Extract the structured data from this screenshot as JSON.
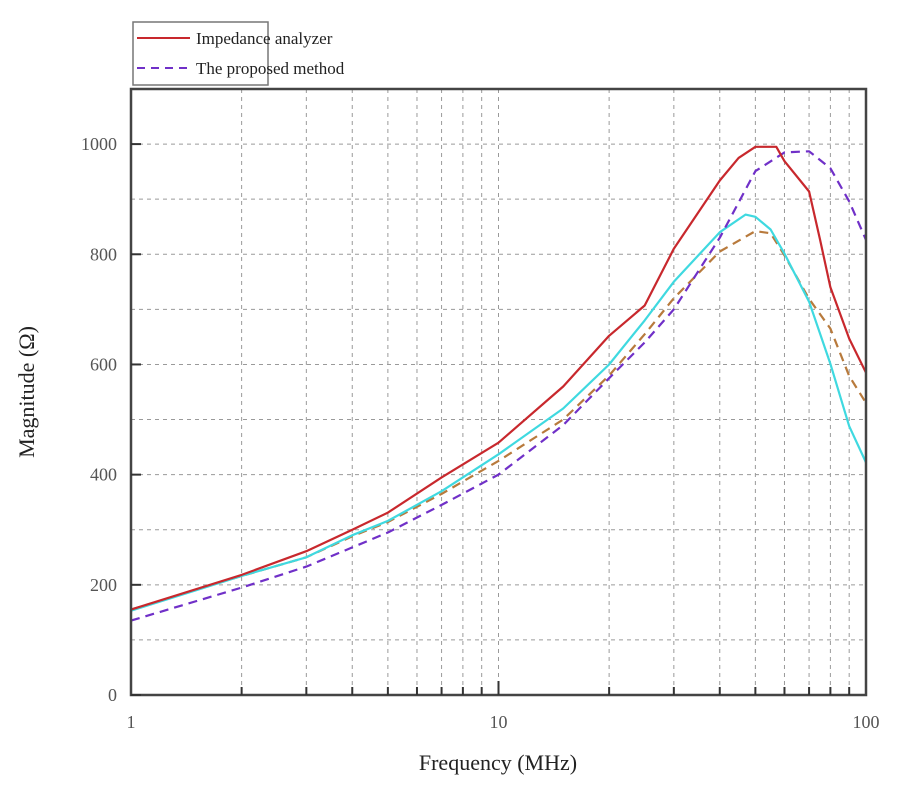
{
  "chart_data": {
    "type": "line",
    "title": "",
    "xlabel": "Frequency (MHz)",
    "ylabel": "Magnitude (Ω)",
    "xscale": "log",
    "xlim": [
      1,
      100
    ],
    "ylim": [
      0,
      1100
    ],
    "x_ticks": [
      1,
      10,
      100
    ],
    "x_tick_labels": [
      "1",
      "10",
      "100"
    ],
    "y_ticks": [
      0,
      200,
      400,
      600,
      800,
      1000
    ],
    "y_tick_labels": [
      "0",
      "200",
      "400",
      "600",
      "800",
      "1000"
    ],
    "y_minor_grid": [
      100,
      300,
      500,
      700,
      900
    ],
    "grid": true,
    "legend_position": "top-left, above plot",
    "series": [
      {
        "name": "Impedance analyzer",
        "in_legend": true,
        "color": "#c8282d",
        "style": "solid",
        "x": [
          1,
          2,
          3,
          4,
          5,
          7,
          10,
          15,
          20,
          25,
          30,
          40,
          45,
          50,
          57,
          60,
          70,
          75,
          80,
          90,
          100
        ],
        "y": [
          155,
          218,
          261,
          300,
          331,
          395,
          458,
          560,
          652,
          707,
          810,
          934,
          975,
          995,
          995,
          969,
          914,
          826,
          740,
          647,
          585
        ]
      },
      {
        "name": "The proposed method",
        "in_legend": true,
        "color": "#7030c8",
        "style": "dashed",
        "x": [
          1,
          2,
          3,
          4,
          5,
          7,
          10,
          15,
          20,
          25,
          30,
          40,
          50,
          60,
          70,
          80,
          90,
          100
        ],
        "y": [
          135,
          195,
          233,
          268,
          295,
          345,
          400,
          490,
          575,
          640,
          700,
          830,
          951,
          985,
          987,
          956,
          896,
          826
        ]
      },
      {
        "name": "Cyan curve (unlabeled)",
        "in_legend": false,
        "color": "#3fd9e0",
        "style": "solid",
        "x": [
          1,
          2,
          3,
          4,
          5,
          7,
          10,
          15,
          20,
          25,
          30,
          40,
          47,
          50,
          55,
          60,
          70,
          80,
          90,
          100
        ],
        "y": [
          153,
          216,
          250,
          290,
          316,
          370,
          437,
          520,
          600,
          680,
          750,
          840,
          872,
          868,
          845,
          801,
          714,
          601,
          488,
          422
        ]
      },
      {
        "name": "Brown curve (unlabeled)",
        "in_legend": false,
        "color": "#b87a3c",
        "style": "dashed",
        "x": [
          1,
          2,
          3,
          4,
          5,
          7,
          10,
          15,
          20,
          25,
          30,
          40,
          50,
          55,
          60,
          70,
          80,
          90,
          100
        ],
        "y": [
          155,
          216,
          250,
          288,
          314,
          365,
          425,
          500,
          580,
          655,
          720,
          805,
          842,
          838,
          798,
          719,
          665,
          579,
          530
        ]
      }
    ]
  }
}
